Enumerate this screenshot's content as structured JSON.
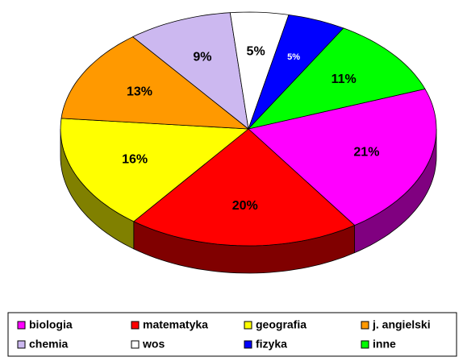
{
  "chart_data": {
    "type": "pie",
    "categories": [
      "biologia",
      "matematyka",
      "geografia",
      "j. angielski",
      "chemia",
      "wos",
      "fizyka",
      "inne"
    ],
    "values": [
      21,
      20,
      16,
      13,
      9,
      5,
      5,
      11
    ],
    "value_labels": [
      "21%",
      "20%",
      "16%",
      "13%",
      "9%",
      "5%",
      "5%",
      "11%"
    ],
    "colors": [
      "#ff00ff",
      "#ff0000",
      "#ffff00",
      "#ff9900",
      "#ccb8f0",
      "#ffffff",
      "#0000ff",
      "#00ff00"
    ],
    "legend": "bottom"
  }
}
